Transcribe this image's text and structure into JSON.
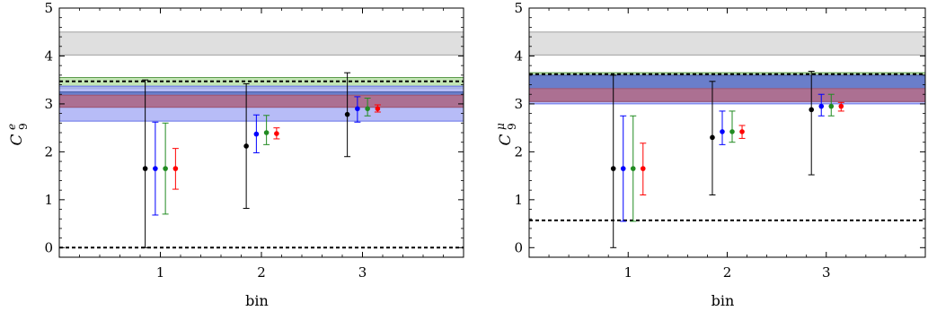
{
  "chart_data": [
    {
      "type": "scatter",
      "xlabel": "bin",
      "ylabel": {
        "base": "C",
        "sub": "9",
        "sup": "e"
      },
      "xlim": [
        0,
        4
      ],
      "ylim": [
        -0.2,
        5
      ],
      "x_ticks": [
        1,
        2,
        3
      ],
      "y_ticks": [
        0,
        1,
        2,
        3,
        4,
        5
      ],
      "bands": [
        {
          "name": "gray",
          "y0": 4.02,
          "y1": 4.5,
          "color": "#d9d9d9",
          "edge": "#a0a0a0"
        },
        {
          "name": "green",
          "y0": 3.33,
          "y1": 3.55,
          "color": "#b8e0a8",
          "edge": "#5a9a4a"
        },
        {
          "name": "blue",
          "y0": 2.64,
          "y1": 3.37,
          "color": "#aab0f6",
          "edge": "#6670e8"
        },
        {
          "name": "dark-blue",
          "y0": 2.93,
          "y1": 3.25,
          "color": "#5d73c2",
          "edge": "#4a5ea8"
        },
        {
          "name": "red",
          "y0": 2.93,
          "y1": 3.18,
          "color": "#b76d88",
          "edge": "#a05470"
        }
      ],
      "hlines": [
        3.47,
        0.0
      ],
      "series": [
        {
          "color": "#000000",
          "x": [
            0.85,
            1.85,
            2.85
          ],
          "y": [
            1.65,
            2.12,
            2.78
          ],
          "lo": [
            0.0,
            0.82,
            1.9
          ],
          "hi": [
            3.5,
            3.42,
            3.65
          ]
        },
        {
          "color": "#0000ff",
          "x": [
            0.95,
            1.95,
            2.95
          ],
          "y": [
            1.65,
            2.37,
            2.9
          ],
          "lo": [
            0.68,
            1.98,
            2.62
          ],
          "hi": [
            2.62,
            2.77,
            3.15
          ]
        },
        {
          "color": "#228b22",
          "x": [
            1.05,
            2.05,
            3.05
          ],
          "y": [
            1.65,
            2.4,
            2.9
          ],
          "lo": [
            0.7,
            2.15,
            2.75
          ],
          "hi": [
            2.6,
            2.76,
            3.12
          ]
        },
        {
          "color": "#ff0000",
          "x": [
            1.15,
            2.15,
            3.15
          ],
          "y": [
            1.65,
            2.38,
            2.9
          ],
          "lo": [
            1.22,
            2.27,
            2.83
          ],
          "hi": [
            2.07,
            2.5,
            2.98
          ]
        }
      ]
    },
    {
      "type": "scatter",
      "xlabel": "bin",
      "ylabel": {
        "base": "C",
        "sub": "9",
        "sup": "μ"
      },
      "xlim": [
        0,
        4
      ],
      "ylim": [
        -0.2,
        5
      ],
      "x_ticks": [
        1,
        2,
        3
      ],
      "y_ticks": [
        0,
        1,
        2,
        3,
        4,
        5
      ],
      "bands": [
        {
          "name": "gray",
          "y0": 4.02,
          "y1": 4.5,
          "color": "#d9d9d9",
          "edge": "#a0a0a0"
        },
        {
          "name": "green",
          "y0": 3.57,
          "y1": 3.65,
          "color": "#b8e0a8",
          "edge": "#5a9a4a"
        },
        {
          "name": "blue",
          "y0": 3.0,
          "y1": 3.6,
          "color": "#aab0f6",
          "edge": "#6670e8"
        },
        {
          "name": "dark-blue",
          "y0": 3.05,
          "y1": 3.6,
          "color": "#5d73c2",
          "edge": "#4a5ea8"
        },
        {
          "name": "red",
          "y0": 3.05,
          "y1": 3.32,
          "color": "#b76d88",
          "edge": "#a05470"
        }
      ],
      "hlines": [
        3.62,
        0.57
      ],
      "series": [
        {
          "color": "#000000",
          "x": [
            0.85,
            1.85,
            2.85
          ],
          "y": [
            1.65,
            2.3,
            2.88
          ],
          "lo": [
            0.0,
            1.1,
            1.52
          ],
          "hi": [
            3.6,
            3.47,
            3.68
          ]
        },
        {
          "color": "#0000ff",
          "x": [
            0.95,
            1.95,
            2.95
          ],
          "y": [
            1.65,
            2.42,
            2.95
          ],
          "lo": [
            0.55,
            2.15,
            2.75
          ],
          "hi": [
            2.75,
            2.85,
            3.2
          ]
        },
        {
          "color": "#228b22",
          "x": [
            1.05,
            2.05,
            3.05
          ],
          "y": [
            1.65,
            2.42,
            2.95
          ],
          "lo": [
            0.55,
            2.2,
            2.75
          ],
          "hi": [
            2.75,
            2.85,
            3.2
          ]
        },
        {
          "color": "#ff0000",
          "x": [
            1.15,
            2.15,
            3.15
          ],
          "y": [
            1.65,
            2.42,
            2.95
          ],
          "lo": [
            1.1,
            2.28,
            2.85
          ],
          "hi": [
            2.18,
            2.55,
            3.03
          ]
        }
      ]
    }
  ]
}
